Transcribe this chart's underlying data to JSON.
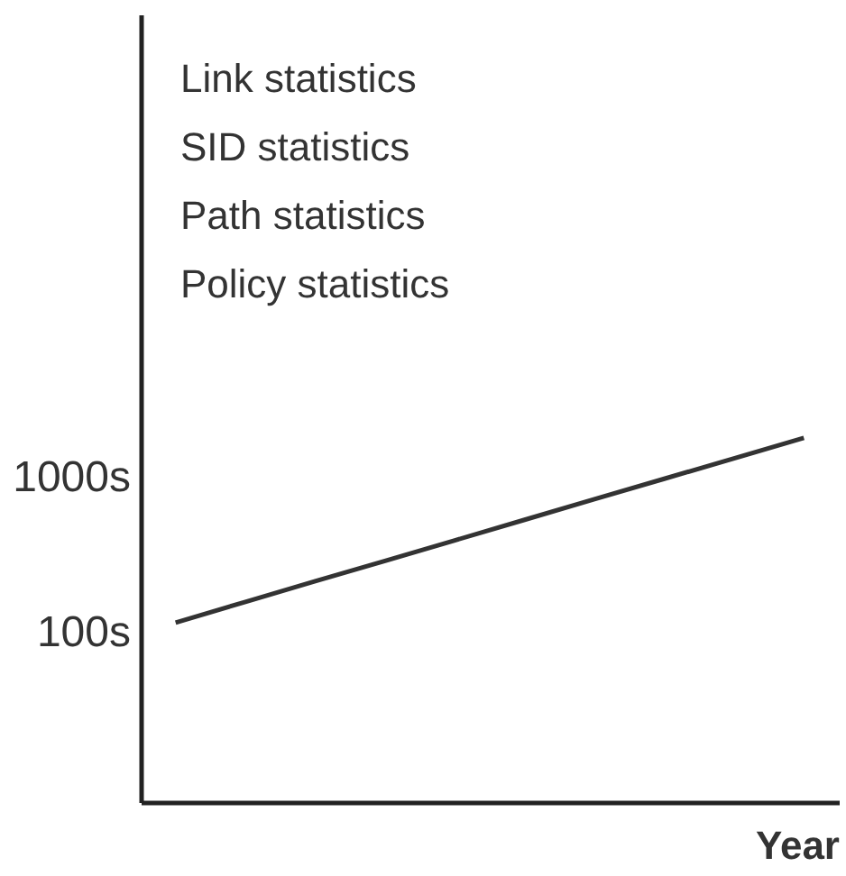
{
  "chart_data": {
    "type": "line",
    "xlabel": "Year",
    "categories": [
      null,
      null,
      null,
      null,
      null,
      null,
      null,
      null,
      null,
      null
    ],
    "series": [
      {
        "color": "#333333",
        "values": [
          116,
          158,
          215,
          291,
          395,
          537,
          729,
          989,
          1340,
          1820
        ]
      }
    ],
    "log": true,
    "ylim": [
      8,
      1000000
    ],
    "yticks": [
      {
        "value": 100,
        "label": "100s"
      },
      {
        "value": 1000,
        "label": "1000s"
      }
    ],
    "annotations": [
      "Link statistics",
      "SID statistics",
      "Path statistics",
      "Policy statistics"
    ]
  }
}
